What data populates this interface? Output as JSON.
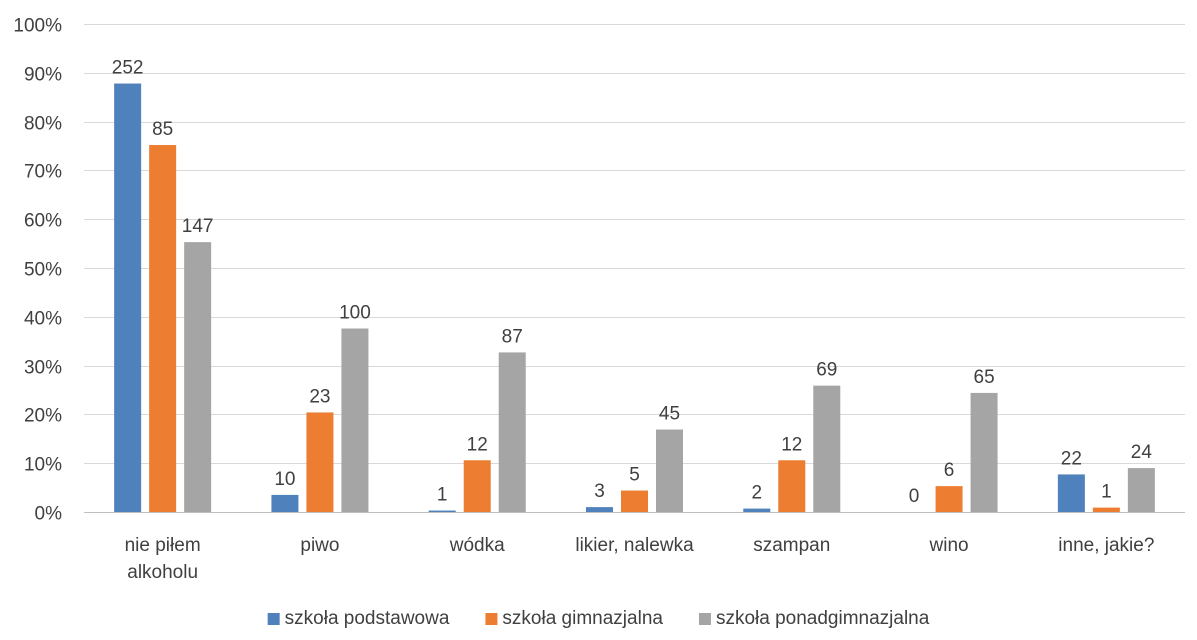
{
  "chart_data": {
    "type": "bar",
    "title": "",
    "xlabel": "",
    "ylabel": "",
    "ylim": [
      0,
      100
    ],
    "y_ticks": [
      "0%",
      "10%",
      "20%",
      "30%",
      "40%",
      "50%",
      "60%",
      "70%",
      "80%",
      "90%",
      "100%"
    ],
    "grid": true,
    "legend_position": "bottom",
    "categories": [
      [
        "nie piłem",
        "alkoholu"
      ],
      [
        "piwo"
      ],
      [
        "wódka"
      ],
      [
        "likier, nalewka"
      ],
      [
        "szampan"
      ],
      [
        "wino"
      ],
      [
        "inne, jakie?"
      ]
    ],
    "series": [
      {
        "name": "szkoła podstawowa",
        "color": "#4f81bd",
        "values": [
          87.8,
          3.5,
          0.3,
          1.0,
          0.7,
          0.0,
          7.7
        ],
        "labels": [
          "252",
          "10",
          "1",
          "3",
          "2",
          "0",
          "22"
        ]
      },
      {
        "name": "szkoła gimnazjalna",
        "color": "#ed7d31",
        "values": [
          75.2,
          20.4,
          10.6,
          4.4,
          10.6,
          5.3,
          0.9
        ],
        "labels": [
          "85",
          "23",
          "12",
          "5",
          "12",
          "6",
          "1"
        ]
      },
      {
        "name": "szkoła ponadgimnazjalna",
        "color": "#a5a5a5",
        "values": [
          55.3,
          37.6,
          32.7,
          16.9,
          25.9,
          24.4,
          9.0
        ],
        "labels": [
          "147",
          "100",
          "87",
          "45",
          "69",
          "65",
          "24"
        ]
      }
    ]
  }
}
